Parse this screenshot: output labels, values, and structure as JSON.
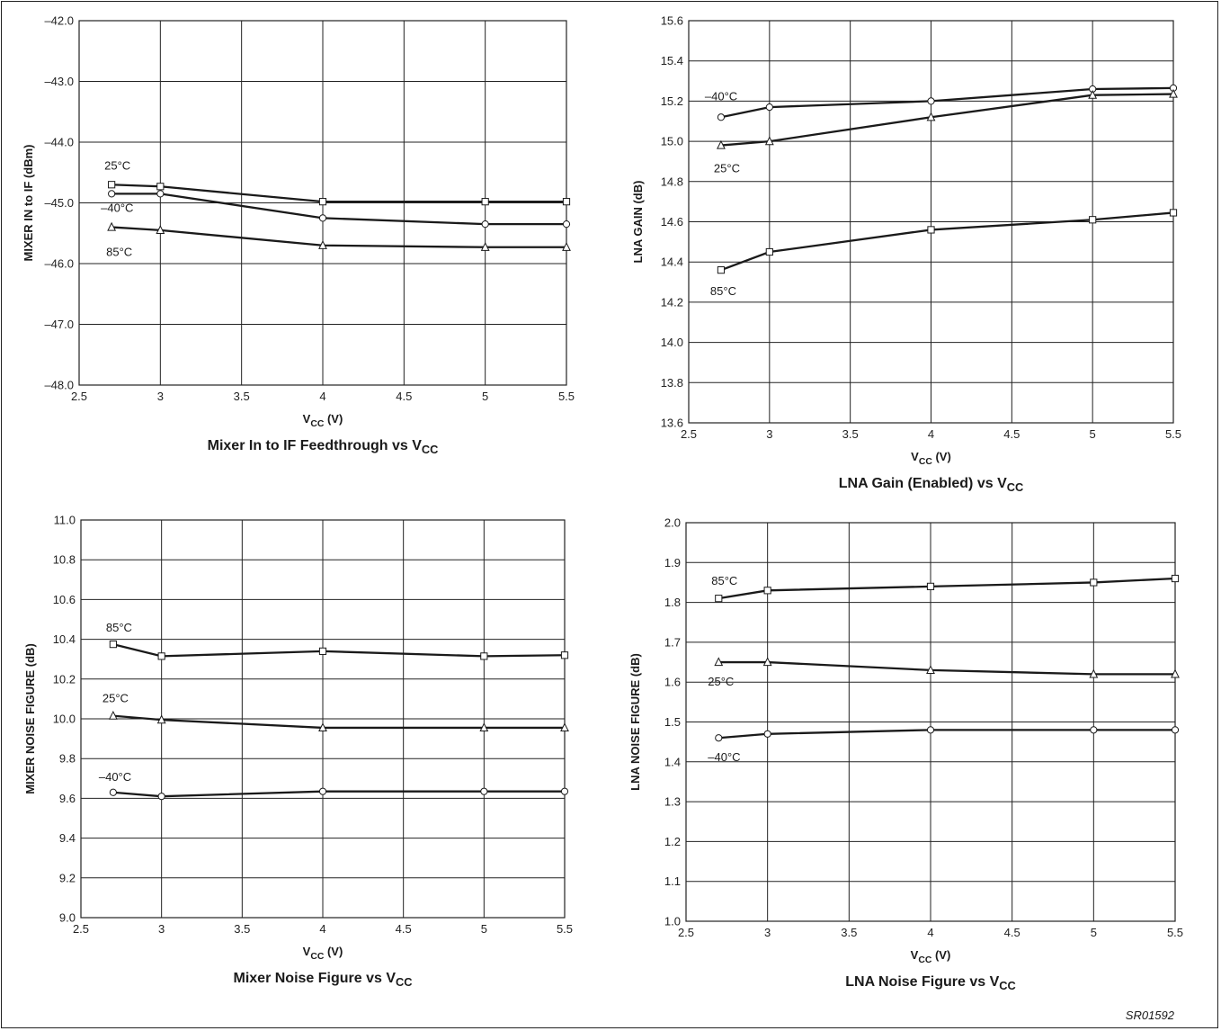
{
  "document": {
    "code": "SR01592"
  },
  "chart_data": [
    {
      "type": "line",
      "title": "Mixer In to IF Feedthrough vs V",
      "title_sub": "CC",
      "xlabel": "V",
      "xlabel_sub": "CC",
      "xlabel_unit": " (V)",
      "ylabel": "MIXER IN to IF (dBm)",
      "xlim": [
        2.5,
        5.5
      ],
      "ylim": [
        -48.0,
        -42.0
      ],
      "xticks": [
        2.5,
        3,
        3.5,
        4,
        4.5,
        5,
        5.5
      ],
      "xtick_labels": [
        "2.5",
        "3",
        "3.5",
        "4",
        "4.5",
        "5",
        "5.5"
      ],
      "yticks": [
        -48.0,
        -47.0,
        -46.0,
        -45.0,
        -44.0,
        -43.0,
        -42.0
      ],
      "ytick_labels": [
        "–48.0",
        "–47.0",
        "–46.0",
        "–45.0",
        "–44.0",
        "–43.0",
        "–42.0"
      ],
      "grid": true,
      "series": [
        {
          "name": "25°C",
          "marker": "square",
          "x": [
            2.7,
            3,
            4,
            5,
            5.5
          ],
          "values": [
            -44.7,
            -44.73,
            -44.98,
            -44.98,
            -44.98
          ]
        },
        {
          "name": "–40°C",
          "marker": "circle",
          "x": [
            2.7,
            3,
            4,
            5,
            5.5
          ],
          "values": [
            -44.85,
            -44.85,
            -45.25,
            -45.35,
            -45.35
          ]
        },
        {
          "name": "85°C",
          "marker": "triangle",
          "x": [
            2.7,
            3,
            4,
            5,
            5.5
          ],
          "values": [
            -45.4,
            -45.45,
            -45.7,
            -45.73,
            -45.73
          ]
        }
      ]
    },
    {
      "type": "line",
      "title": "LNA Gain (Enabled) vs V",
      "title_sub": "CC",
      "xlabel": "V",
      "xlabel_sub": "CC",
      "xlabel_unit": " (V)",
      "ylabel": "LNA GAIN (dB)",
      "xlim": [
        2.5,
        5.5
      ],
      "ylim": [
        13.6,
        15.6
      ],
      "xticks": [
        2.5,
        3,
        3.5,
        4,
        4.5,
        5,
        5.5
      ],
      "xtick_labels": [
        "2.5",
        "3",
        "3.5",
        "4",
        "4.5",
        "5",
        "5.5"
      ],
      "yticks": [
        13.6,
        13.8,
        14.0,
        14.2,
        14.4,
        14.6,
        14.8,
        15.0,
        15.2,
        15.4,
        15.6
      ],
      "ytick_labels": [
        "13.6",
        "13.8",
        "14.0",
        "14.2",
        "14.4",
        "14.6",
        "14.8",
        "15.0",
        "15.2",
        "15.4",
        "15.6"
      ],
      "grid": true,
      "series": [
        {
          "name": "–40°C",
          "marker": "circle",
          "x": [
            2.7,
            3,
            4,
            5,
            5.5
          ],
          "values": [
            15.12,
            15.17,
            15.2,
            15.26,
            15.265
          ]
        },
        {
          "name": "25°C",
          "marker": "triangle",
          "x": [
            2.7,
            3,
            4,
            5,
            5.5
          ],
          "values": [
            14.98,
            15.0,
            15.12,
            15.23,
            15.235
          ]
        },
        {
          "name": "85°C",
          "marker": "square",
          "x": [
            2.7,
            3,
            4,
            5,
            5.5
          ],
          "values": [
            14.36,
            14.45,
            14.56,
            14.61,
            14.645
          ]
        }
      ]
    },
    {
      "type": "line",
      "title": "Mixer Noise Figure vs V",
      "title_sub": "CC",
      "xlabel": "V",
      "xlabel_sub": "CC",
      "xlabel_unit": " (V)",
      "ylabel": "MIXER NOISE FIGURE (dB)",
      "xlim": [
        2.5,
        5.5
      ],
      "ylim": [
        9.0,
        11.0
      ],
      "xticks": [
        2.5,
        3,
        3.5,
        4,
        4.5,
        5,
        5.5
      ],
      "xtick_labels": [
        "2.5",
        "3",
        "3.5",
        "4",
        "4.5",
        "5",
        "5.5"
      ],
      "yticks": [
        9.0,
        9.2,
        9.4,
        9.6,
        9.8,
        10.0,
        10.2,
        10.4,
        10.6,
        10.8,
        11.0
      ],
      "ytick_labels": [
        "9.0",
        "9.2",
        "9.4",
        "9.6",
        "9.8",
        "10.0",
        "10.2",
        "10.4",
        "10.6",
        "10.8",
        "11.0"
      ],
      "grid": true,
      "series": [
        {
          "name": "85°C",
          "marker": "square",
          "x": [
            2.7,
            3,
            4,
            5,
            5.5
          ],
          "values": [
            10.375,
            10.315,
            10.34,
            10.315,
            10.32
          ]
        },
        {
          "name": "25°C",
          "marker": "triangle",
          "x": [
            2.7,
            3,
            4,
            5,
            5.5
          ],
          "values": [
            10.015,
            9.995,
            9.955,
            9.955,
            9.955
          ]
        },
        {
          "name": "–40°C",
          "marker": "circle",
          "x": [
            2.7,
            3,
            4,
            5,
            5.5
          ],
          "values": [
            9.63,
            9.61,
            9.635,
            9.635,
            9.635
          ]
        }
      ]
    },
    {
      "type": "line",
      "title": "LNA Noise Figure vs V",
      "title_sub": "CC",
      "xlabel": "V",
      "xlabel_sub": "CC",
      "xlabel_unit": " (V)",
      "ylabel": "LNA NOISE FIGURE (dB)",
      "xlim": [
        2.5,
        5.5
      ],
      "ylim": [
        1.0,
        2.0
      ],
      "xticks": [
        2.5,
        3,
        3.5,
        4,
        4.5,
        5,
        5.5
      ],
      "xtick_labels": [
        "2.5",
        "3",
        "3.5",
        "4",
        "4.5",
        "5",
        "5.5"
      ],
      "yticks": [
        1.0,
        1.1,
        1.2,
        1.3,
        1.4,
        1.5,
        1.6,
        1.7,
        1.8,
        1.9,
        2.0
      ],
      "ytick_labels": [
        "1.0",
        "1.1",
        "1.2",
        "1.3",
        "1.4",
        "1.5",
        "1.6",
        "1.7",
        "1.8",
        "1.9",
        "2.0"
      ],
      "grid": true,
      "series": [
        {
          "name": "85°C",
          "marker": "square",
          "x": [
            2.7,
            3,
            4,
            5,
            5.5
          ],
          "values": [
            1.81,
            1.83,
            1.84,
            1.85,
            1.86
          ]
        },
        {
          "name": "25°C",
          "marker": "triangle",
          "x": [
            2.7,
            3,
            4,
            5,
            5.5
          ],
          "values": [
            1.65,
            1.65,
            1.63,
            1.62,
            1.62
          ]
        },
        {
          "name": "–40°C",
          "marker": "circle",
          "x": [
            2.7,
            3,
            4,
            5,
            5.5
          ],
          "values": [
            1.46,
            1.47,
            1.48,
            1.48,
            1.48
          ]
        }
      ]
    }
  ]
}
